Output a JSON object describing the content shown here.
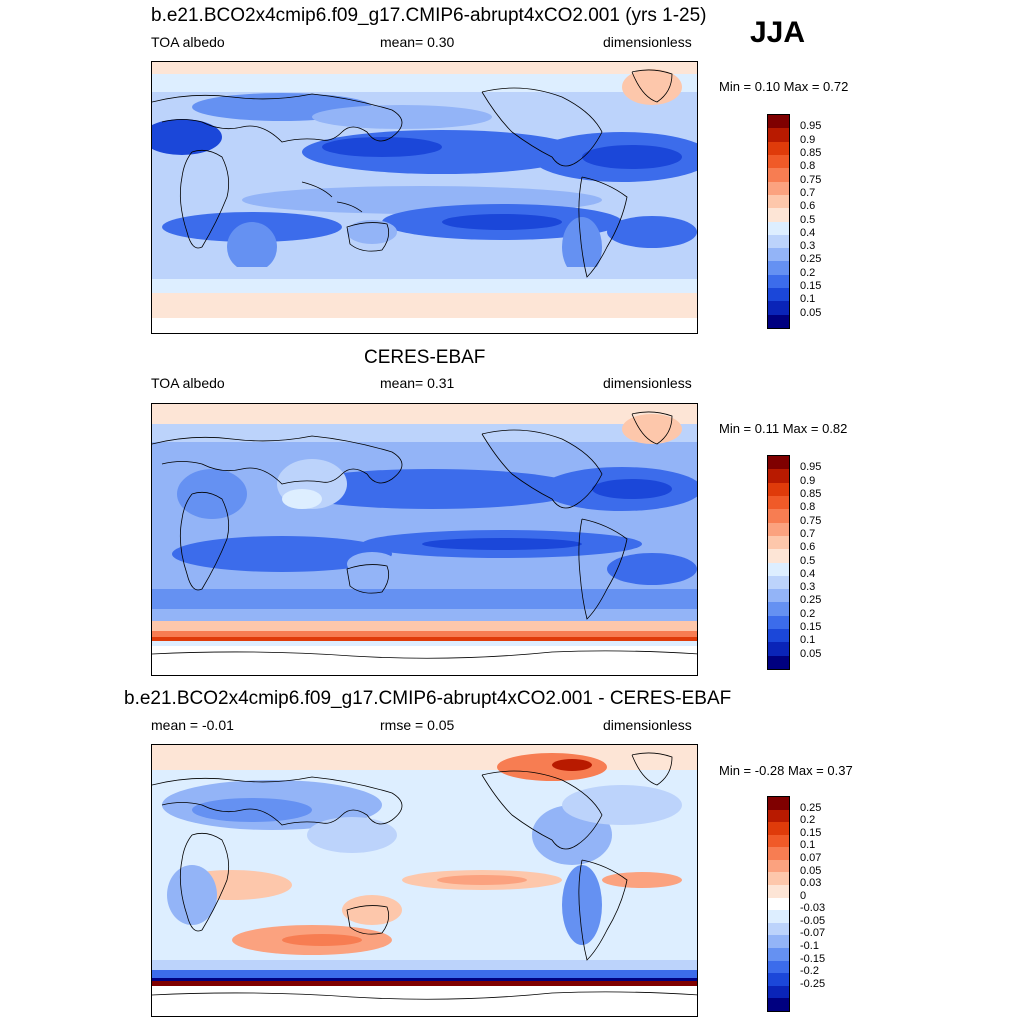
{
  "season": "JJA",
  "panels": [
    {
      "id": "model",
      "title": "b.e21.BCO2x4cmip6.f09_g17.CMIP6-abrupt4xCO2.001 (yrs 1-25)",
      "left_label": "TOA albedo",
      "center_label": "mean=   0.30",
      "right_label": "dimensionless",
      "minmax": "Min =   0.10 Max =   0.72",
      "colorbar_labels": [
        "0.95",
        "0.9",
        "0.85",
        "0.8",
        "0.75",
        "0.7",
        "0.6",
        "0.5",
        "0.4",
        "0.3",
        "0.25",
        "0.2",
        "0.15",
        "0.1",
        "0.05"
      ]
    },
    {
      "id": "obs",
      "title": "CERES-EBAF",
      "left_label": "TOA albedo",
      "center_label": "mean=   0.31",
      "right_label": "dimensionless",
      "minmax": "Min =   0.11 Max =   0.82",
      "colorbar_labels": [
        "0.95",
        "0.9",
        "0.85",
        "0.8",
        "0.75",
        "0.7",
        "0.6",
        "0.5",
        "0.4",
        "0.3",
        "0.25",
        "0.2",
        "0.15",
        "0.1",
        "0.05"
      ]
    },
    {
      "id": "diff",
      "title": "b.e21.BCO2x4cmip6.f09_g17.CMIP6-abrupt4xCO2.001 - CERES-EBAF",
      "left_label": "mean =  -0.01",
      "center_label": "rmse =   0.05",
      "right_label": "dimensionless",
      "minmax": "Min =  -0.28 Max =   0.37",
      "colorbar_labels": [
        "0.25",
        "0.2",
        "0.15",
        "0.1",
        "0.07",
        "0.05",
        "0.03",
        "0",
        "-0.03",
        "-0.05",
        "-0.07",
        "-0.1",
        "-0.15",
        "-0.2",
        "-0.25"
      ]
    }
  ],
  "colors": {
    "albedo_scale": [
      "#7f0000",
      "#b81a00",
      "#df3b0a",
      "#f05a28",
      "#f77d52",
      "#fba27f",
      "#fdc7ab",
      "#fde5d6",
      "#ddeeff",
      "#bcd3fb",
      "#93b4f7",
      "#6591f2",
      "#3c6ceb",
      "#1b47d9",
      "#0a24b8",
      "#000080"
    ],
    "diff_scale": [
      "#7f0000",
      "#b81a00",
      "#df3b0a",
      "#f05a28",
      "#f77d52",
      "#fba27f",
      "#fdc7ab",
      "#fde5d6",
      "#ffffff",
      "#ddeeff",
      "#bcd3fb",
      "#93b4f7",
      "#6591f2",
      "#3c6ceb",
      "#1b47d9",
      "#0a24b8",
      "#000080"
    ]
  }
}
